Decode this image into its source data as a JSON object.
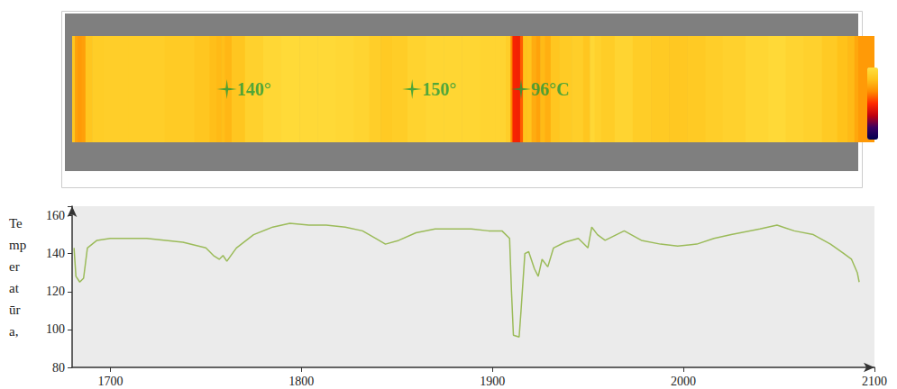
{
  "chart_data": {
    "type": "line",
    "y_label": "Temperatūra,",
    "x": [
      1681,
      1682,
      1684,
      1686,
      1688,
      1693,
      1700,
      1719,
      1738,
      1750,
      1754,
      1757,
      1759,
      1761,
      1766,
      1775,
      1785,
      1794,
      1804,
      1813,
      1823,
      1832,
      1839,
      1844,
      1851,
      1860,
      1870,
      1879,
      1889,
      1898,
      1905,
      1909,
      1910,
      1911,
      1914,
      1915,
      1917,
      1919,
      1922,
      1924,
      1926,
      1929,
      1932,
      1938,
      1945,
      1950,
      1952,
      1955,
      1959,
      1969,
      1978,
      1988,
      1997,
      2007,
      2016,
      2025,
      2040,
      2049,
      2058,
      2068,
      2077,
      2084,
      2088,
      2091,
      2092
    ],
    "values": [
      143,
      128,
      125,
      127,
      143,
      147,
      148,
      148,
      146,
      143,
      139,
      137,
      139,
      136,
      143,
      150,
      154,
      156,
      155,
      155,
      154,
      152,
      148,
      145,
      147,
      151,
      153,
      153,
      153,
      152,
      152,
      148,
      120,
      97,
      96,
      110,
      140,
      141,
      132,
      128,
      137,
      133,
      143,
      146,
      148,
      143,
      154,
      150,
      147,
      152,
      147,
      145,
      144,
      145,
      148,
      150,
      153,
      155,
      152,
      150,
      145,
      140,
      137,
      130,
      125
    ],
    "color": "#9bbb59",
    "xlim": [
      1680,
      2100
    ],
    "xticks": [
      1700,
      1800,
      1900,
      2000,
      2100
    ],
    "ylim": [
      80,
      165
    ],
    "yticks": [
      80,
      100,
      120,
      140,
      160
    ],
    "grid": false,
    "colorbar_range": [
      40,
      160
    ],
    "annotations": [
      {
        "text": "140°",
        "x": 1761
      },
      {
        "text": "150°",
        "x": 1858
      },
      {
        "text": "96°C",
        "x": 1915
      }
    ]
  }
}
